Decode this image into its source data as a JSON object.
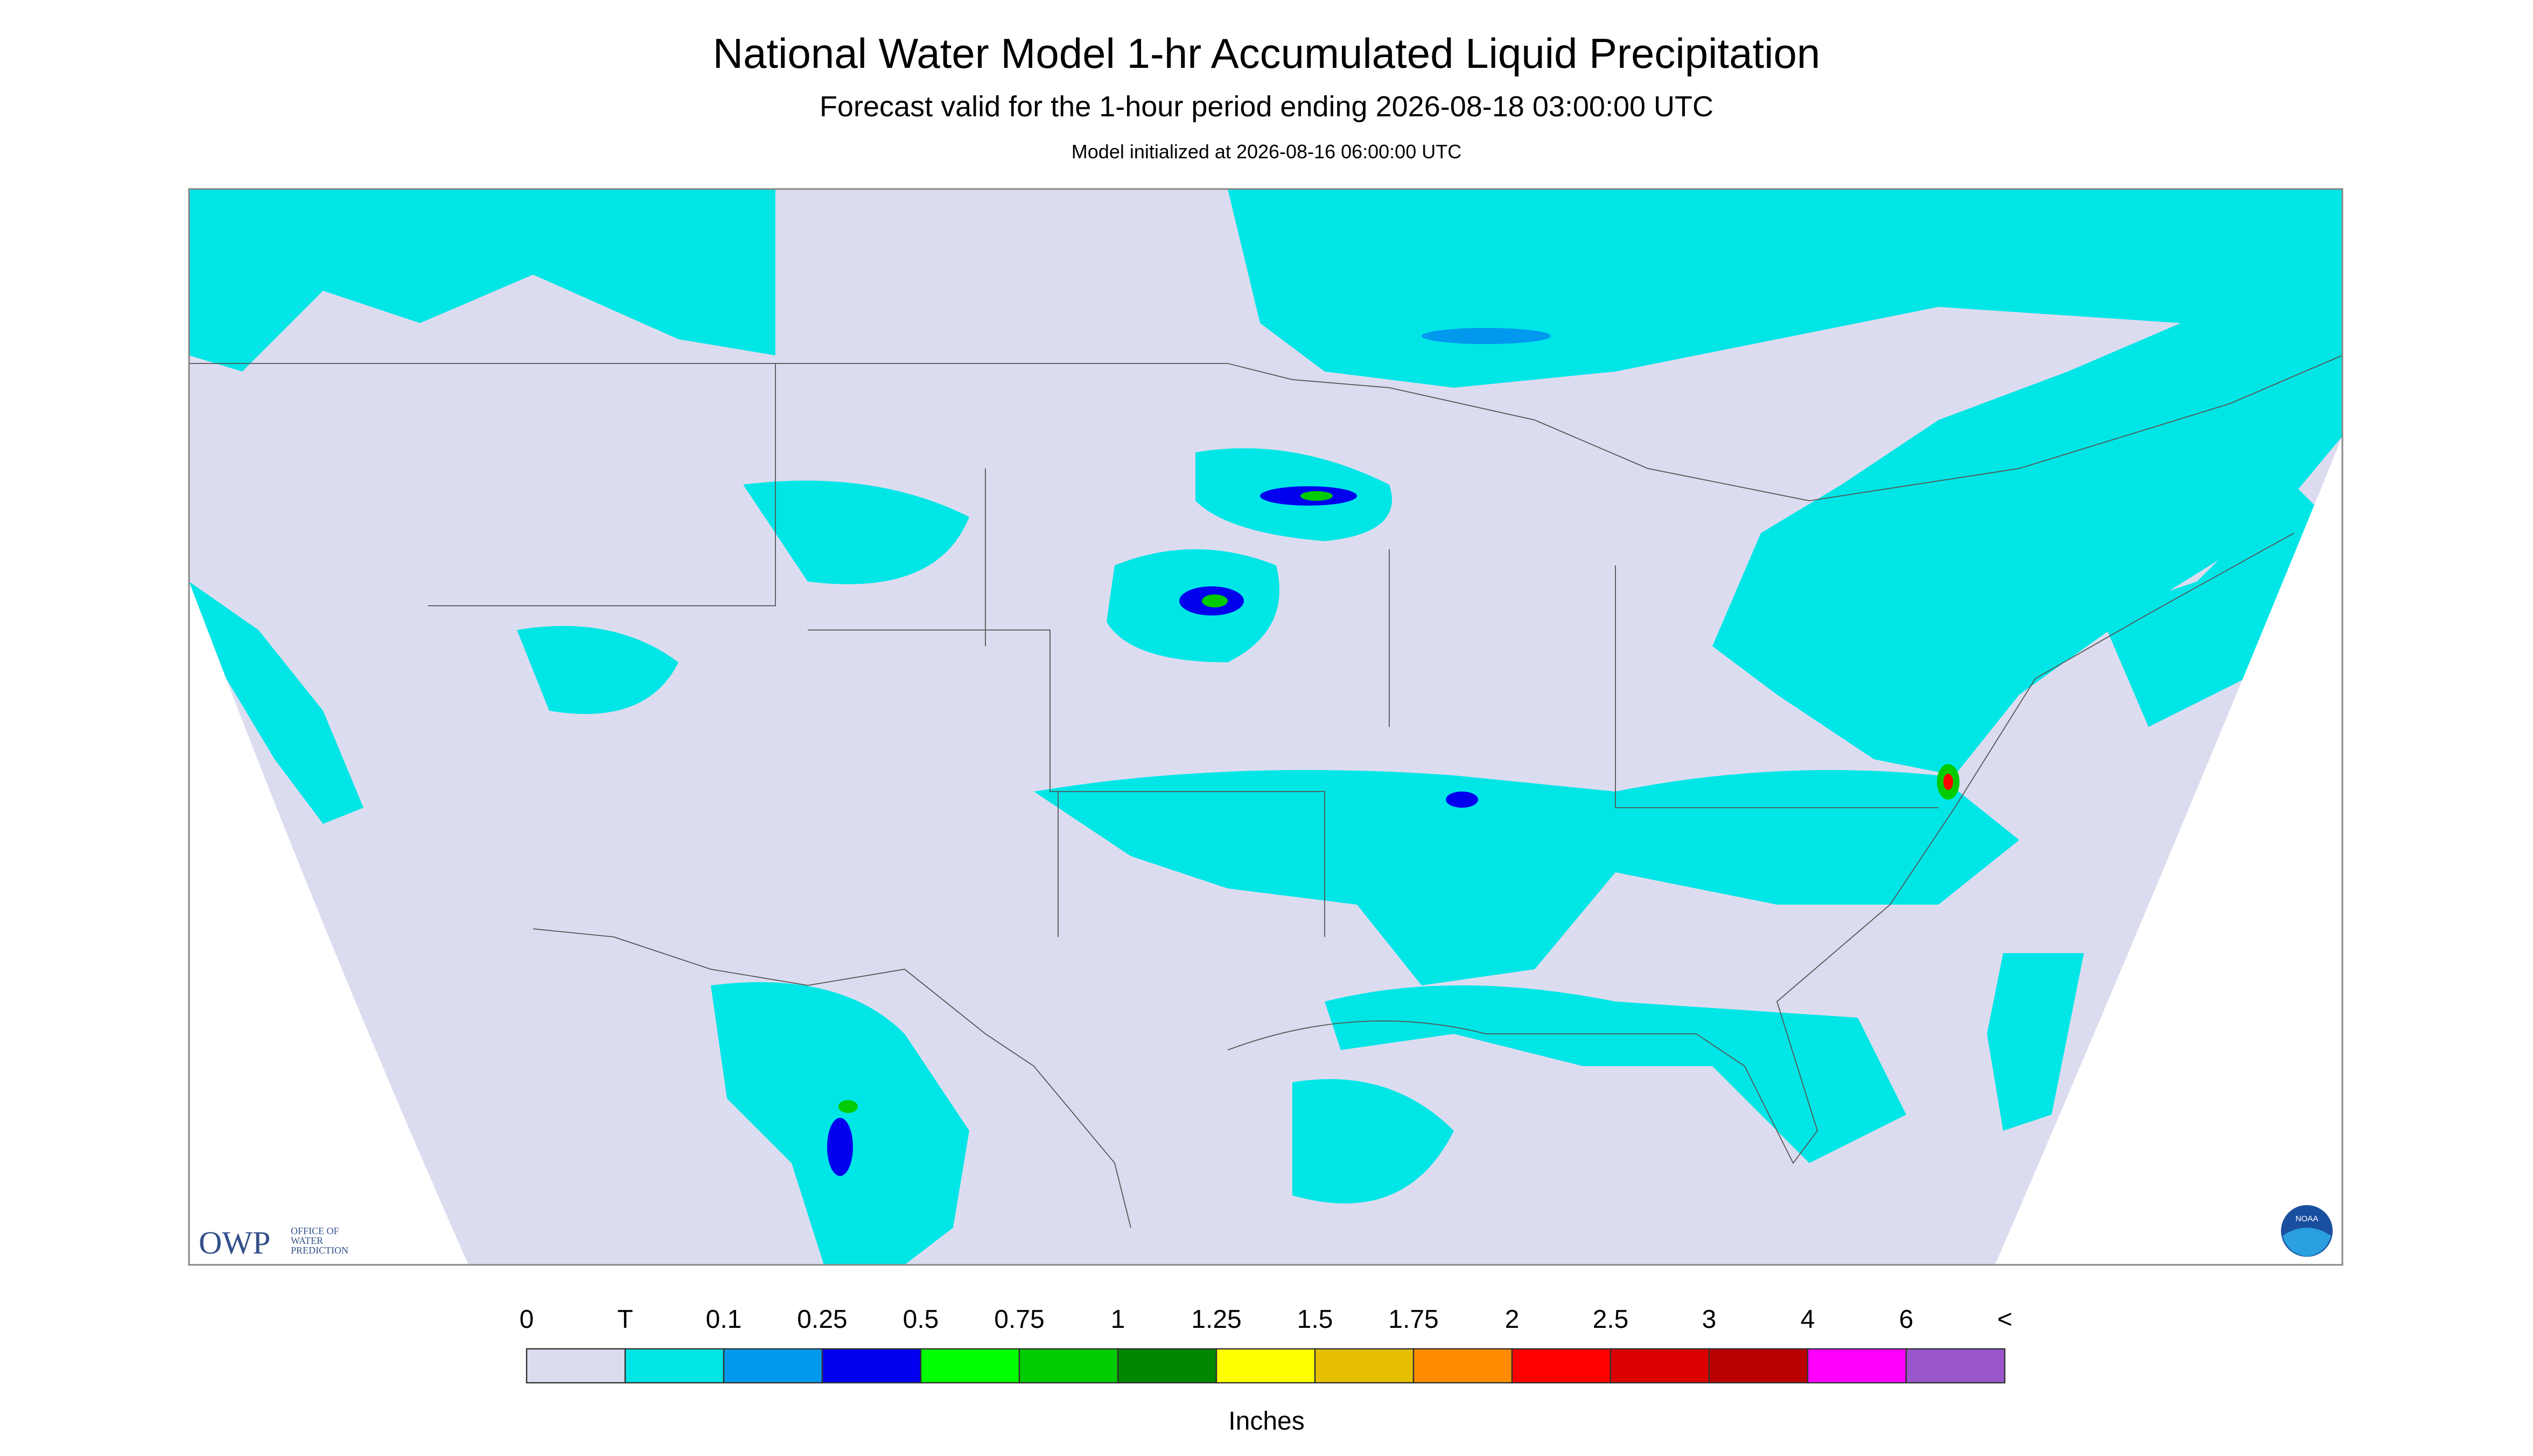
{
  "header": {
    "title": "National Water Model 1-hr Accumulated Liquid Precipitation",
    "subtitle": "Forecast valid for the 1-hour period ending 2026-08-18 03:00:00 UTC",
    "note": "Model initialized at 2026-08-16 06:00:00 UTC"
  },
  "logos": {
    "owp": "OWP",
    "owp_text": [
      "OFFICE OF",
      "WATER",
      "PREDICTION"
    ],
    "noaa": "NOAA"
  },
  "legend": {
    "labels": [
      "0",
      "T",
      "0.1",
      "0.25",
      "0.5",
      "0.75",
      "1",
      "1.25",
      "1.5",
      "1.75",
      "2",
      "2.5",
      "3",
      "4",
      "6",
      "<"
    ],
    "colors": [
      "#dcdcf0",
      "#00e6e6",
      "#0099ee",
      "#0000ee",
      "#00ff00",
      "#00cc00",
      "#008800",
      "#ffff00",
      "#e6c000",
      "#ff8c00",
      "#ff0000",
      "#dd0000",
      "#bb0000",
      "#ff00ff",
      "#9955cc"
    ],
    "unit": "Inches"
  }
}
